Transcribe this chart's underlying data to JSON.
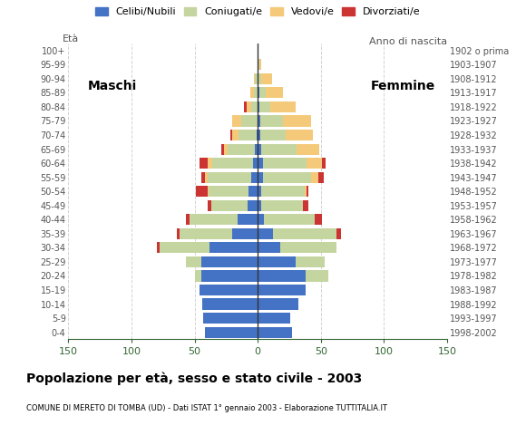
{
  "age_groups": [
    "0-4",
    "5-9",
    "10-14",
    "15-19",
    "20-24",
    "25-29",
    "30-34",
    "35-39",
    "40-44",
    "45-49",
    "50-54",
    "55-59",
    "60-64",
    "65-69",
    "70-74",
    "75-79",
    "80-84",
    "85-89",
    "90-94",
    "95-99",
    "100+"
  ],
  "birth_years": [
    "1998-2002",
    "1993-1997",
    "1988-1992",
    "1983-1987",
    "1978-1982",
    "1973-1977",
    "1968-1972",
    "1963-1967",
    "1958-1962",
    "1953-1957",
    "1948-1952",
    "1943-1947",
    "1938-1942",
    "1933-1937",
    "1928-1932",
    "1923-1927",
    "1918-1922",
    "1913-1917",
    "1908-1912",
    "1903-1907",
    "1902 o prima"
  ],
  "males": {
    "celibi": [
      42,
      43,
      44,
      46,
      45,
      45,
      38,
      20,
      16,
      8,
      7,
      5,
      4,
      2,
      1,
      0,
      0,
      0,
      0,
      0,
      0
    ],
    "coniugati": [
      0,
      0,
      0,
      0,
      5,
      12,
      40,
      42,
      38,
      29,
      32,
      35,
      32,
      22,
      14,
      13,
      5,
      3,
      2,
      0,
      0
    ],
    "vedovi": [
      0,
      0,
      0,
      0,
      0,
      0,
      0,
      0,
      0,
      0,
      1,
      2,
      4,
      3,
      5,
      7,
      4,
      3,
      1,
      0,
      0
    ],
    "divorziati": [
      0,
      0,
      0,
      0,
      0,
      0,
      2,
      2,
      3,
      3,
      9,
      3,
      6,
      2,
      2,
      0,
      2,
      0,
      0,
      0,
      0
    ]
  },
  "females": {
    "nubili": [
      27,
      26,
      32,
      38,
      38,
      30,
      18,
      12,
      5,
      3,
      3,
      4,
      4,
      3,
      2,
      2,
      1,
      1,
      0,
      0,
      0
    ],
    "coniugate": [
      0,
      0,
      0,
      0,
      18,
      23,
      44,
      50,
      40,
      33,
      34,
      38,
      35,
      28,
      20,
      18,
      9,
      5,
      3,
      1,
      0
    ],
    "vedove": [
      0,
      0,
      0,
      0,
      0,
      0,
      0,
      0,
      0,
      0,
      2,
      6,
      12,
      18,
      22,
      22,
      20,
      14,
      8,
      2,
      0
    ],
    "divorziate": [
      0,
      0,
      0,
      0,
      0,
      0,
      0,
      4,
      6,
      4,
      1,
      4,
      3,
      0,
      0,
      0,
      0,
      0,
      0,
      0,
      0
    ]
  },
  "colors": {
    "celibi": "#4472C4",
    "coniugati": "#C5D5A0",
    "vedovi": "#F5C97A",
    "divorziati": "#CC3333"
  },
  "xlim": 150,
  "title": "Popolazione per età, sesso e stato civile - 2003",
  "subtitle": "COMUNE DI MERETO DI TOMBA (UD) - Dati ISTAT 1° gennaio 2003 - Elaborazione TUTTITALIA.IT",
  "ylabel_left": "Età",
  "ylabel_right": "Anno di nascita",
  "label_maschi": "Maschi",
  "label_femmine": "Femmine",
  "legend_labels": [
    "Celibi/Nubili",
    "Coniugati/e",
    "Vedovi/e",
    "Divorziati/e"
  ],
  "xticks": [
    -150,
    -100,
    -50,
    0,
    50,
    100,
    150
  ]
}
